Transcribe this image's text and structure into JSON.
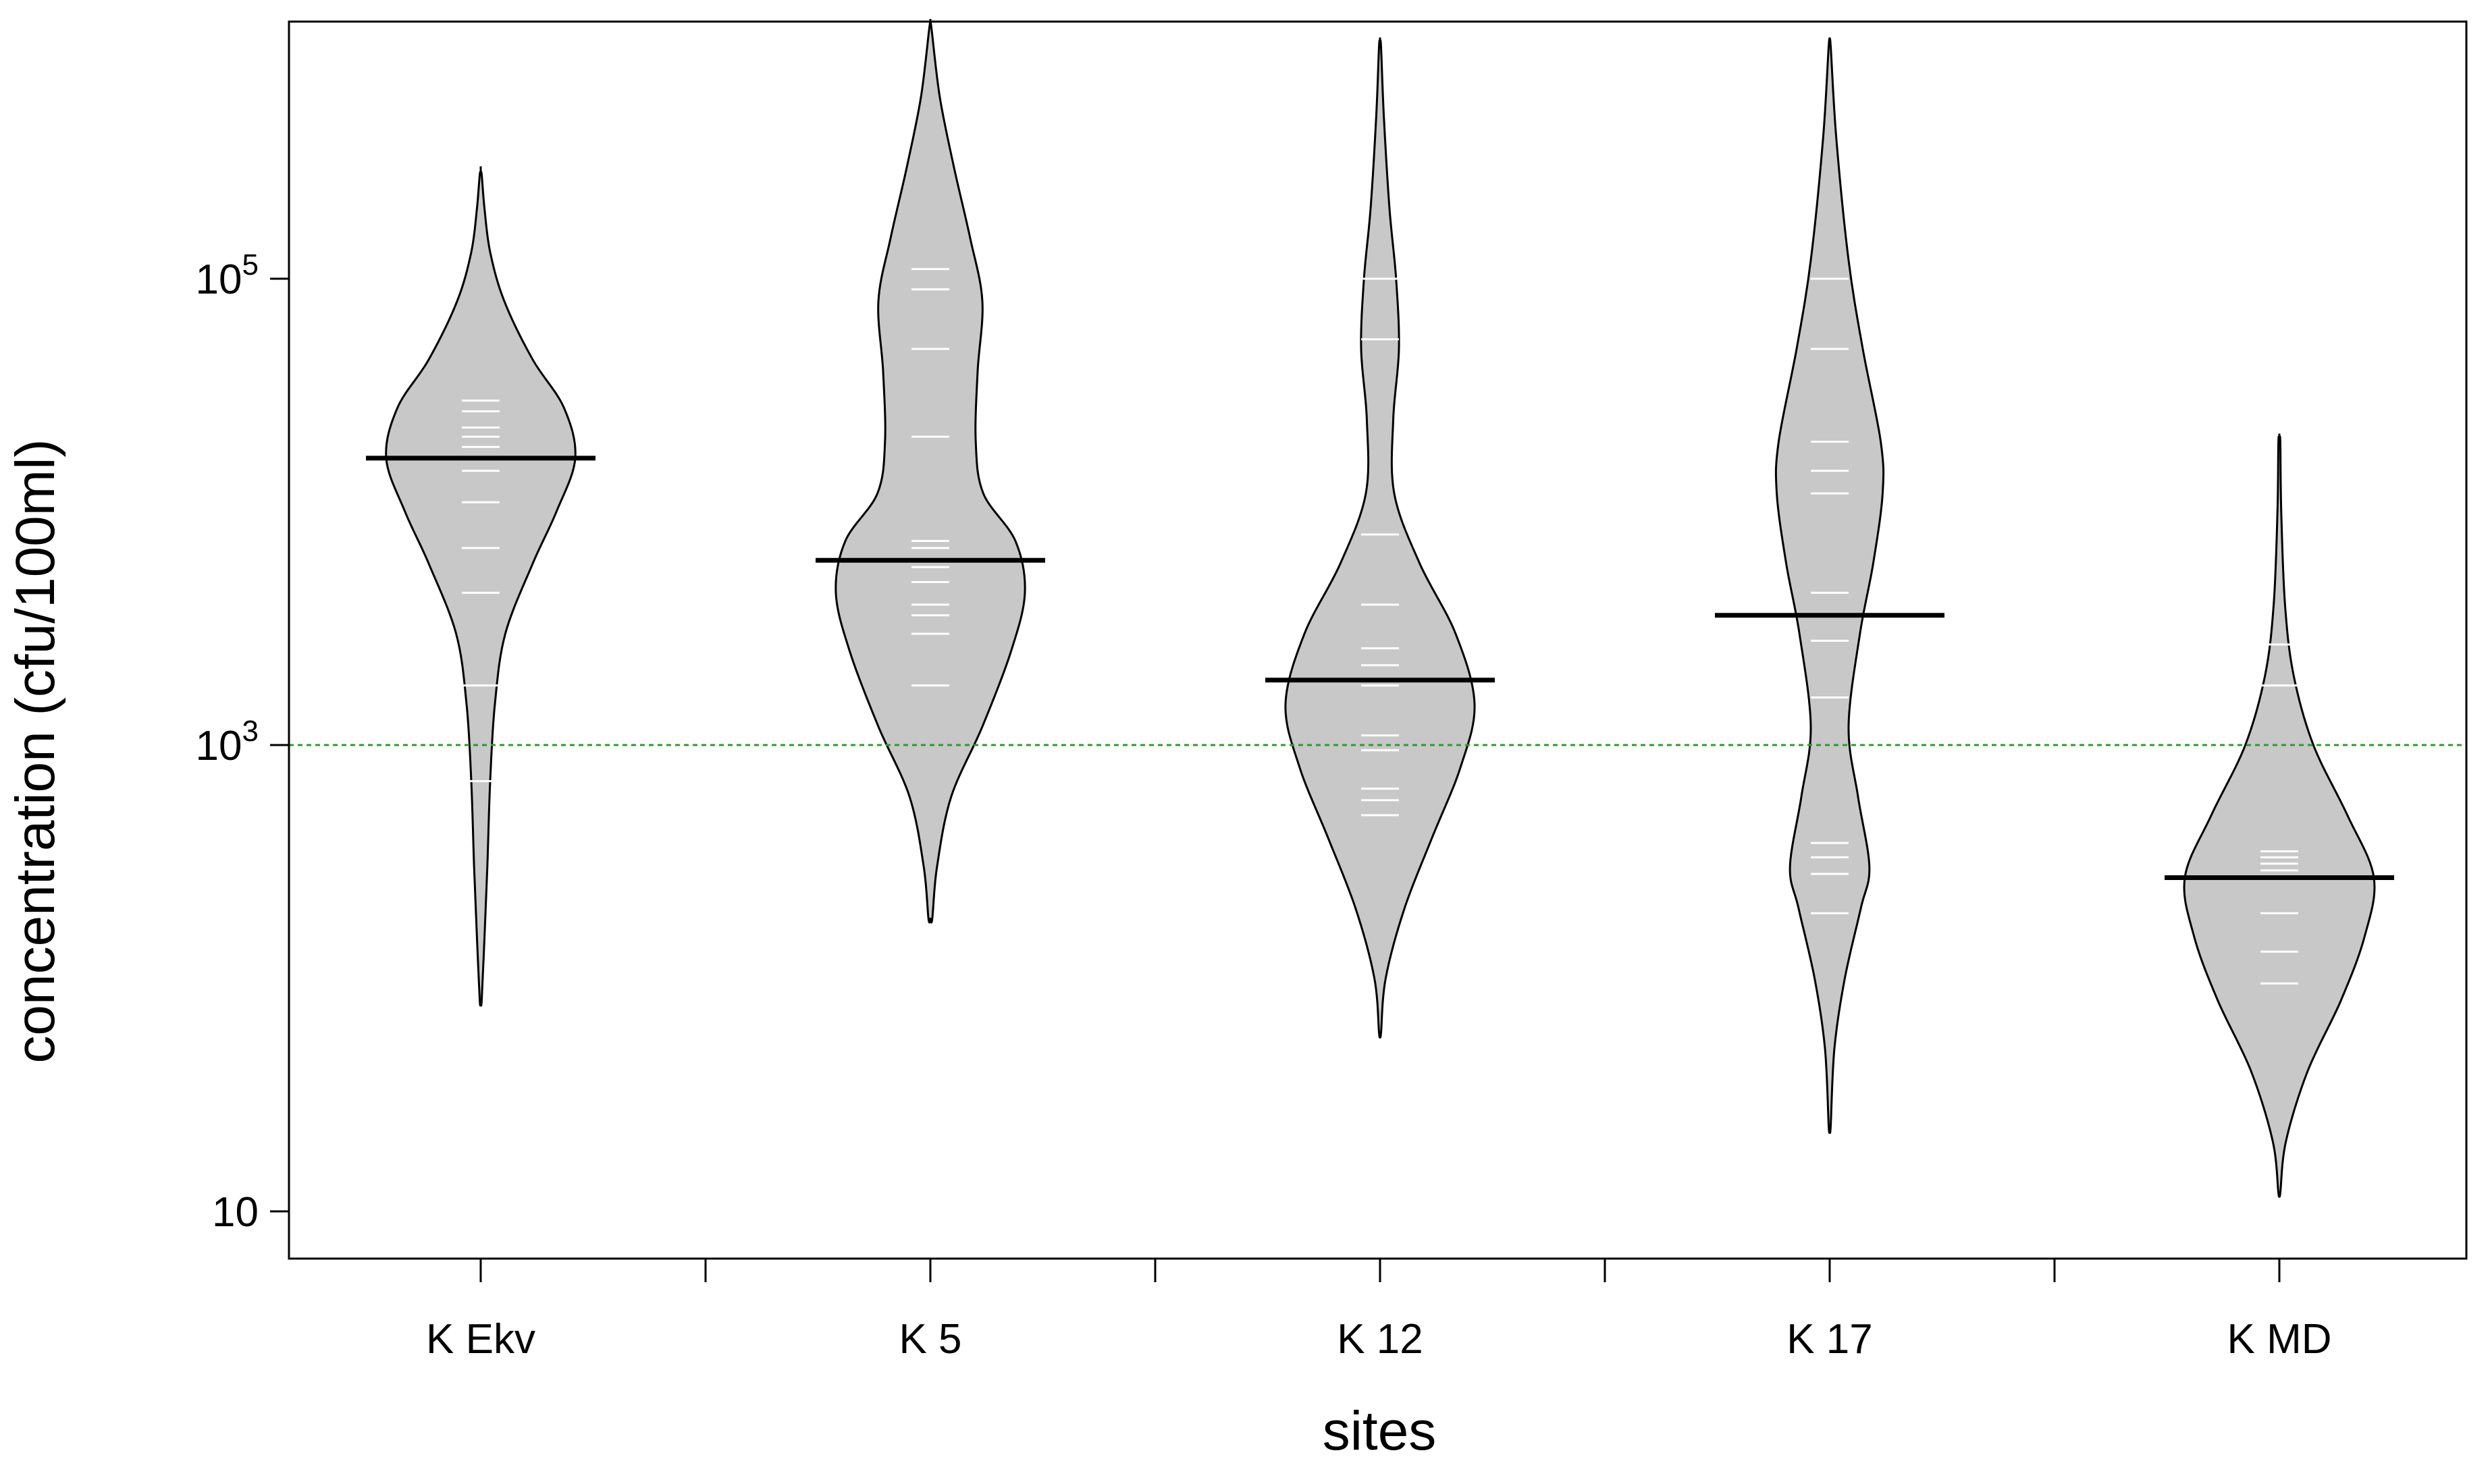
{
  "chart_data": {
    "type": "beanplot",
    "title": "",
    "xlabel": "sites",
    "ylabel": "concentration (cfu/100ml)",
    "y_scale": "log10",
    "ylim": [
      7,
      1400000
    ],
    "y_ticks": [
      {
        "value": 10,
        "base": "10",
        "exp": ""
      },
      {
        "value": 1000,
        "base": "10",
        "exp": "3"
      },
      {
        "value": 100000,
        "base": "10",
        "exp": "5"
      }
    ],
    "reference_line": {
      "value": 1000,
      "color": "#2e9b2e",
      "style": "dotted"
    },
    "bean_fill": "#c8c8c8",
    "obs_color": "#ffffff",
    "median_color": "#000000",
    "categories": [
      "K Ekv",
      "K 5",
      "K 12",
      "K 17",
      "K MD"
    ],
    "beans": [
      {
        "name": "K Ekv",
        "range": [
          80,
          280000
        ],
        "median": 17000,
        "observations": [
          30000,
          27000,
          23000,
          21000,
          19000,
          17000,
          15000,
          11000,
          7000,
          4500,
          1800,
          700
        ],
        "density": [
          [
            80,
            0.01
          ],
          [
            150,
            0.04
          ],
          [
            300,
            0.07
          ],
          [
            700,
            0.1
          ],
          [
            1500,
            0.15
          ],
          [
            3000,
            0.26
          ],
          [
            6000,
            0.55
          ],
          [
            10000,
            0.8
          ],
          [
            17000,
            1.0
          ],
          [
            28000,
            0.88
          ],
          [
            45000,
            0.55
          ],
          [
            80000,
            0.25
          ],
          [
            130000,
            0.1
          ],
          [
            200000,
            0.04
          ],
          [
            280000,
            0.01
          ]
        ]
      },
      {
        "name": "K 5",
        "range": [
          180,
          1200000
        ],
        "median": 6200,
        "observations": [
          110000,
          90000,
          50000,
          21000,
          7500,
          7000,
          5800,
          5000,
          4000,
          3600,
          3000,
          1800
        ],
        "density": [
          [
            180,
            0.02
          ],
          [
            300,
            0.07
          ],
          [
            600,
            0.22
          ],
          [
            1200,
            0.55
          ],
          [
            2500,
            0.85
          ],
          [
            4500,
            1.0
          ],
          [
            7500,
            0.9
          ],
          [
            12000,
            0.56
          ],
          [
            20000,
            0.48
          ],
          [
            40000,
            0.5
          ],
          [
            80000,
            0.55
          ],
          [
            150000,
            0.42
          ],
          [
            300000,
            0.25
          ],
          [
            600000,
            0.1
          ],
          [
            1200000,
            0.01
          ]
        ]
      },
      {
        "name": "K 12",
        "range": [
          58,
          1000000
        ],
        "median": 1900,
        "observations": [
          100000,
          55000,
          8000,
          4000,
          2600,
          2200,
          1800,
          1100,
          950,
          650,
          580,
          500
        ],
        "density": [
          [
            58,
            0.01
          ],
          [
            100,
            0.06
          ],
          [
            200,
            0.26
          ],
          [
            400,
            0.55
          ],
          [
            800,
            0.85
          ],
          [
            1500,
            1.0
          ],
          [
            3000,
            0.8
          ],
          [
            6000,
            0.42
          ],
          [
            12000,
            0.15
          ],
          [
            25000,
            0.14
          ],
          [
            50000,
            0.2
          ],
          [
            100000,
            0.17
          ],
          [
            200000,
            0.1
          ],
          [
            500000,
            0.04
          ],
          [
            1000000,
            0.01
          ]
        ]
      },
      {
        "name": "K 17",
        "range": [
          23,
          1000000
        ],
        "median": 3600,
        "observations": [
          100000,
          50000,
          20000,
          15000,
          12000,
          4500,
          2800,
          1600,
          380,
          330,
          280,
          190
        ],
        "density": [
          [
            23,
            0.01
          ],
          [
            50,
            0.05
          ],
          [
            100,
            0.16
          ],
          [
            200,
            0.33
          ],
          [
            300,
            0.42
          ],
          [
            600,
            0.3
          ],
          [
            1200,
            0.2
          ],
          [
            3000,
            0.32
          ],
          [
            6000,
            0.46
          ],
          [
            12000,
            0.56
          ],
          [
            20000,
            0.54
          ],
          [
            50000,
            0.35
          ],
          [
            120000,
            0.2
          ],
          [
            400000,
            0.07
          ],
          [
            1000000,
            0.01
          ]
        ]
      },
      {
        "name": "K MD",
        "range": [
          12,
          20000
        ],
        "median": 270,
        "observations": [
          2700,
          1800,
          350,
          330,
          310,
          290,
          270,
          190,
          130,
          95
        ],
        "density": [
          [
            12,
            0.01
          ],
          [
            20,
            0.07
          ],
          [
            40,
            0.3
          ],
          [
            80,
            0.65
          ],
          [
            150,
            0.9
          ],
          [
            270,
            1.0
          ],
          [
            500,
            0.72
          ],
          [
            1000,
            0.36
          ],
          [
            2000,
            0.15
          ],
          [
            4000,
            0.06
          ],
          [
            10000,
            0.02
          ],
          [
            20000,
            0.01
          ]
        ]
      }
    ]
  }
}
